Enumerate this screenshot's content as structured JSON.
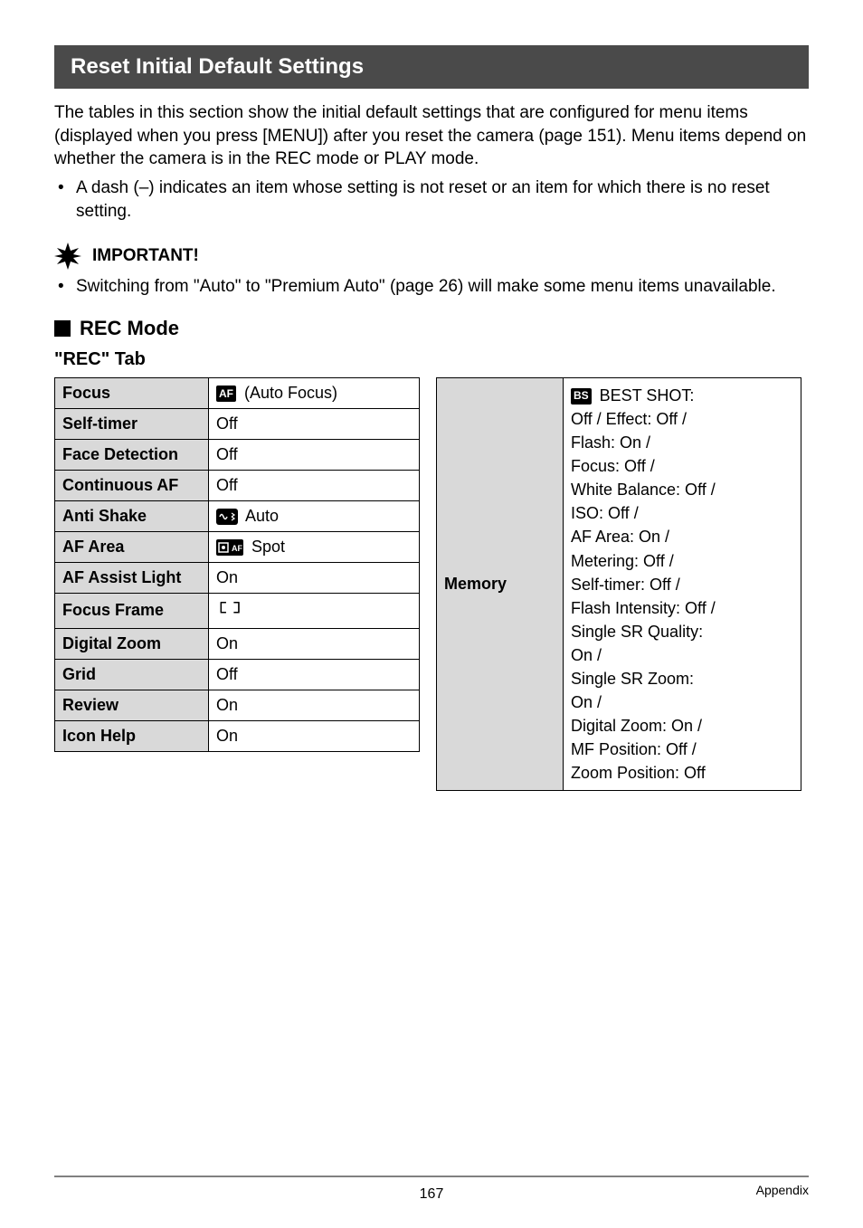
{
  "section_title": "Reset Initial Default Settings",
  "intro_p1": "The tables in this section show the initial default settings that are configured for menu items (displayed when you press [MENU]) after you reset the camera (page 151). Menu items depend on whether the camera is in the REC mode or PLAY mode.",
  "intro_bullet": "A dash (–) indicates an item whose setting is not reset or an item for which there is no reset setting.",
  "important_label": "IMPORTANT!",
  "important_bullet": "Switching from \"Auto\" to \"Premium Auto\" (page 26) will make some menu items unavailable.",
  "rec_mode_label": "REC Mode",
  "tab_label": "\"REC\" Tab",
  "left_table": [
    {
      "label": "Focus",
      "icon": "AF",
      "icon_type": "box",
      "suffix": " (Auto Focus)"
    },
    {
      "label": "Self-timer",
      "value": "Off"
    },
    {
      "label": "Face Detection",
      "value": "Off"
    },
    {
      "label": "Continuous AF",
      "value": "Off"
    },
    {
      "label": "Anti Shake",
      "icon": "anti-shake",
      "icon_type": "svg",
      "suffix": " Auto"
    },
    {
      "label": "AF Area",
      "icon": "spot",
      "icon_type": "svg",
      "suffix": " Spot"
    },
    {
      "label": "AF Assist Light",
      "value": "On"
    },
    {
      "label": "Focus Frame",
      "icon": "brackets",
      "icon_type": "brackets"
    },
    {
      "label": "Digital Zoom",
      "value": "On"
    },
    {
      "label": "Grid",
      "value": "Off"
    },
    {
      "label": "Review",
      "value": "On"
    },
    {
      "label": "Icon Help",
      "value": "On"
    }
  ],
  "memory_label": "Memory",
  "memory_icon": "BS",
  "memory_lines": [
    " BEST SHOT: Off / Effect: Off / Flash: On / Focus: Off / White Balance: Off / ISO: Off / AF Area: On / Metering: Off / Self-timer: Off / Flash Intensity: Off / Single SR Quality: On / Single SR Zoom: On / Digital Zoom: On / MF Position: Off / Zoom Position: Off"
  ],
  "page_number": "167",
  "appendix": "Appendix"
}
